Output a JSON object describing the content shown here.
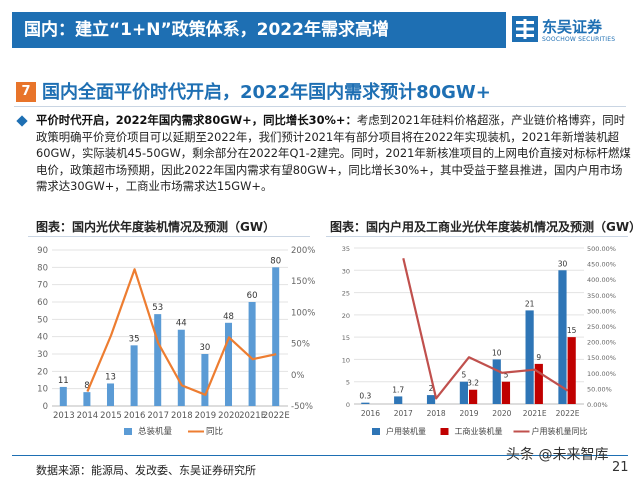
{
  "header": {
    "title": "国内：建立“1+N”政策体系，2022年需求高增",
    "logo_cn": "东吴证券",
    "logo_en": "SOOCHOW SECURITIES"
  },
  "section": {
    "number": "7",
    "title": "国内全面平价时代开启，2022年国内需求预计80GW+"
  },
  "body": {
    "lead": "平价时代开启，2022年国内需求80GW+，同比增长30%+：",
    "text": "考虑到2021年硅料价格超涨，产业链价格博弈，同时政策明确平价竞价项目可以延期至2022年，我们预计2021年有部分项目将在2022年实现装机，2021年新增装机超60GW，实际装机45-50GW，剩余部分在2022年Q1-2建完。同时，2021年新核准项目的上网电价直接对标标杆燃煤电价，政策超市场预期，因此2022年国内需求有望80GW+，同比增长30%+，其中受益于整县推进，国内户用市场需求达30GW+，工商业市场需求达15GW+。"
  },
  "chart_data": [
    {
      "type": "bar",
      "title": "图表：国内光伏年度装机情况及预测（GW）",
      "categories": [
        "2013",
        "2014",
        "2015",
        "2016",
        "2017",
        "2018",
        "2019",
        "2020",
        "2021E",
        "2022E"
      ],
      "series": [
        {
          "name": "总装机量",
          "type": "bar",
          "axis": "left",
          "color": "#5b9bd5",
          "values": [
            11,
            8,
            13,
            35,
            53,
            44,
            30,
            48,
            60,
            80
          ]
        },
        {
          "name": "同比",
          "type": "line",
          "axis": "right",
          "color": "#ed7d31",
          "values": [
            null,
            -27,
            63,
            169,
            51,
            -17,
            -32,
            60,
            25,
            33
          ]
        }
      ],
      "ylim": [
        0,
        90
      ],
      "yticks": [
        "0",
        "10",
        "20",
        "30",
        "40",
        "50",
        "60",
        "70",
        "80",
        "90"
      ],
      "y2lim": [
        -50,
        200
      ],
      "y2ticks": [
        "-50%",
        "0%",
        "50%",
        "100%",
        "150%",
        "200%"
      ],
      "legend": "bottom"
    },
    {
      "type": "bar",
      "title": "图表：国内户用及工商业光伏年度装机情况及预测（GW）",
      "categories": [
        "2016",
        "2017",
        "2018",
        "2019",
        "2020",
        "2021E",
        "2022E"
      ],
      "series": [
        {
          "name": "户用装机量",
          "type": "bar",
          "axis": "left",
          "color": "#2e75b6",
          "values": [
            0.3,
            1.7,
            2,
            5,
            10,
            21,
            30
          ],
          "labels": [
            "0.3",
            "1.7",
            "2",
            "5",
            "10",
            "21",
            "30"
          ]
        },
        {
          "name": "工商业装机量",
          "type": "bar",
          "axis": "left",
          "color": "#c00000",
          "values": [
            null,
            null,
            null,
            3.2,
            5,
            9,
            15
          ],
          "labels": [
            "",
            "",
            "",
            "3.2",
            "5",
            "9",
            "15"
          ]
        },
        {
          "name": "户用装机量同比",
          "type": "line",
          "axis": "right",
          "color": "#c0504d",
          "values": [
            null,
            467,
            18,
            150,
            100,
            110,
            43
          ]
        }
      ],
      "ylim": [
        0,
        35
      ],
      "yticks": [
        "0",
        "5",
        "10",
        "15",
        "20",
        "25",
        "30",
        "35"
      ],
      "y2lim": [
        0,
        500
      ],
      "y2ticks": [
        "0.00%",
        "50.00%",
        "100.00%",
        "150.00%",
        "200.00%",
        "250.00%",
        "300.00%",
        "350.00%",
        "400.00%",
        "450.00%",
        "500.00%"
      ],
      "legend": "bottom"
    }
  ],
  "footer": {
    "source": "数据来源：能源局、发改委、东吴证券研究所",
    "watermark": "头条 @未来智库",
    "page": "21"
  },
  "colors": {
    "brand_blue": "#1e6fb3",
    "accent_orange": "#e8742a"
  }
}
